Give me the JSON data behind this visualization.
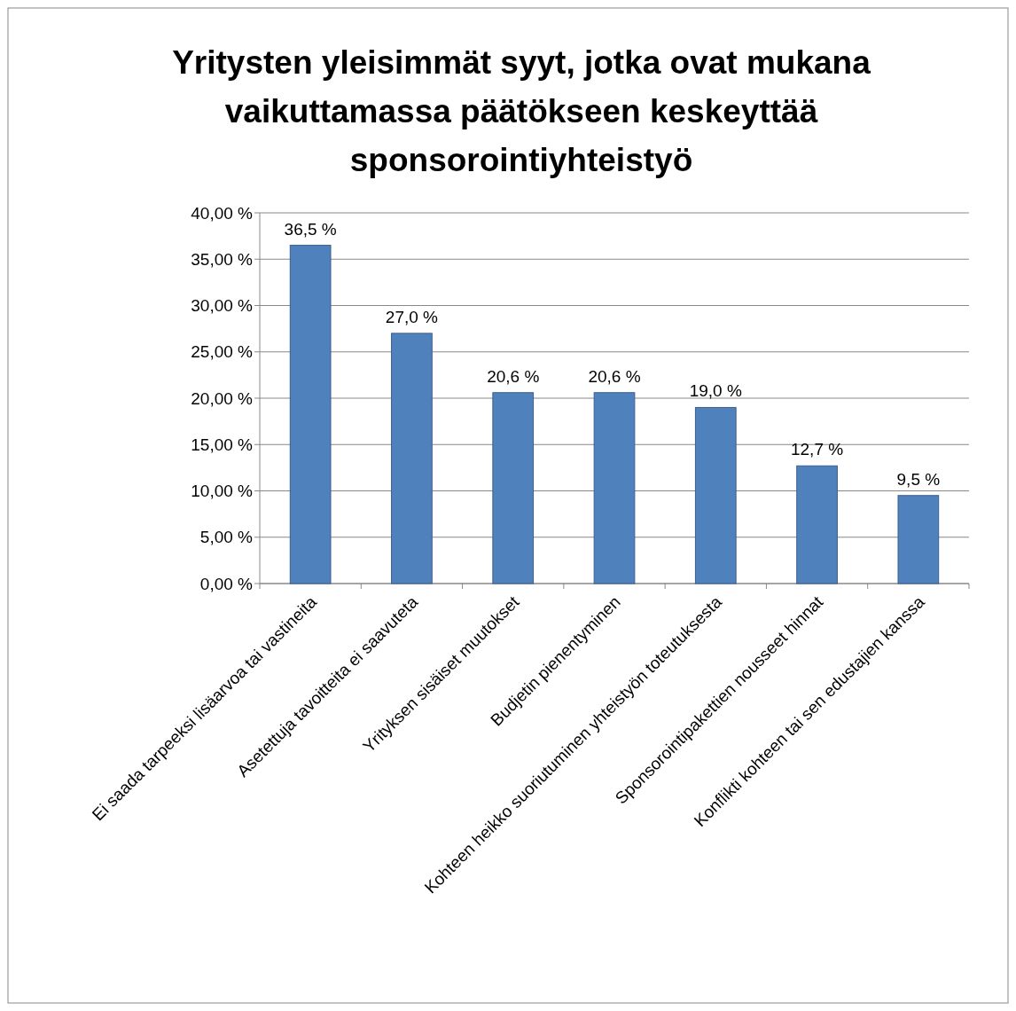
{
  "chart_data": {
    "type": "bar",
    "title": "Yritysten yleisimmät syyt, jotka ovat mukana vaikuttamassa päätökseen keskeyttää sponsorointiyhteistyö",
    "categories": [
      "Ei saada tarpeeksi lisäarvoa tai vastineita",
      "Asetettuja tavoitteita ei saavuteta",
      "Yrityksen sisäiset muutokset",
      "Budjetin pienentyminen",
      "Kohteen heikko suoriutuminen yhteistyön toteutuksesta",
      "Sponsorointipakettien nousseet hinnat",
      "Konflikti kohteen tai sen edustajien kanssa"
    ],
    "values": [
      36.5,
      27.0,
      20.6,
      20.6,
      19.0,
      12.7,
      9.5
    ],
    "value_labels": [
      "36,5 %",
      "27,0 %",
      "20,6 %",
      "20,6 %",
      "19,0 %",
      "12,7 %",
      "9,5 %"
    ],
    "color": "#4f81bd",
    "ylim": [
      0,
      40
    ],
    "yticks": [
      {
        "value": 0,
        "label": "0,00 %"
      },
      {
        "value": 5,
        "label": "5,00 %"
      },
      {
        "value": 10,
        "label": "10,00 %"
      },
      {
        "value": 15,
        "label": "15,00 %"
      },
      {
        "value": 20,
        "label": "20,00 %"
      },
      {
        "value": 25,
        "label": "25,00 %"
      },
      {
        "value": 30,
        "label": "30,00 %"
      },
      {
        "value": 35,
        "label": "35,00 %"
      },
      {
        "value": 40,
        "label": "40,00 %"
      }
    ],
    "grid": "y"
  }
}
